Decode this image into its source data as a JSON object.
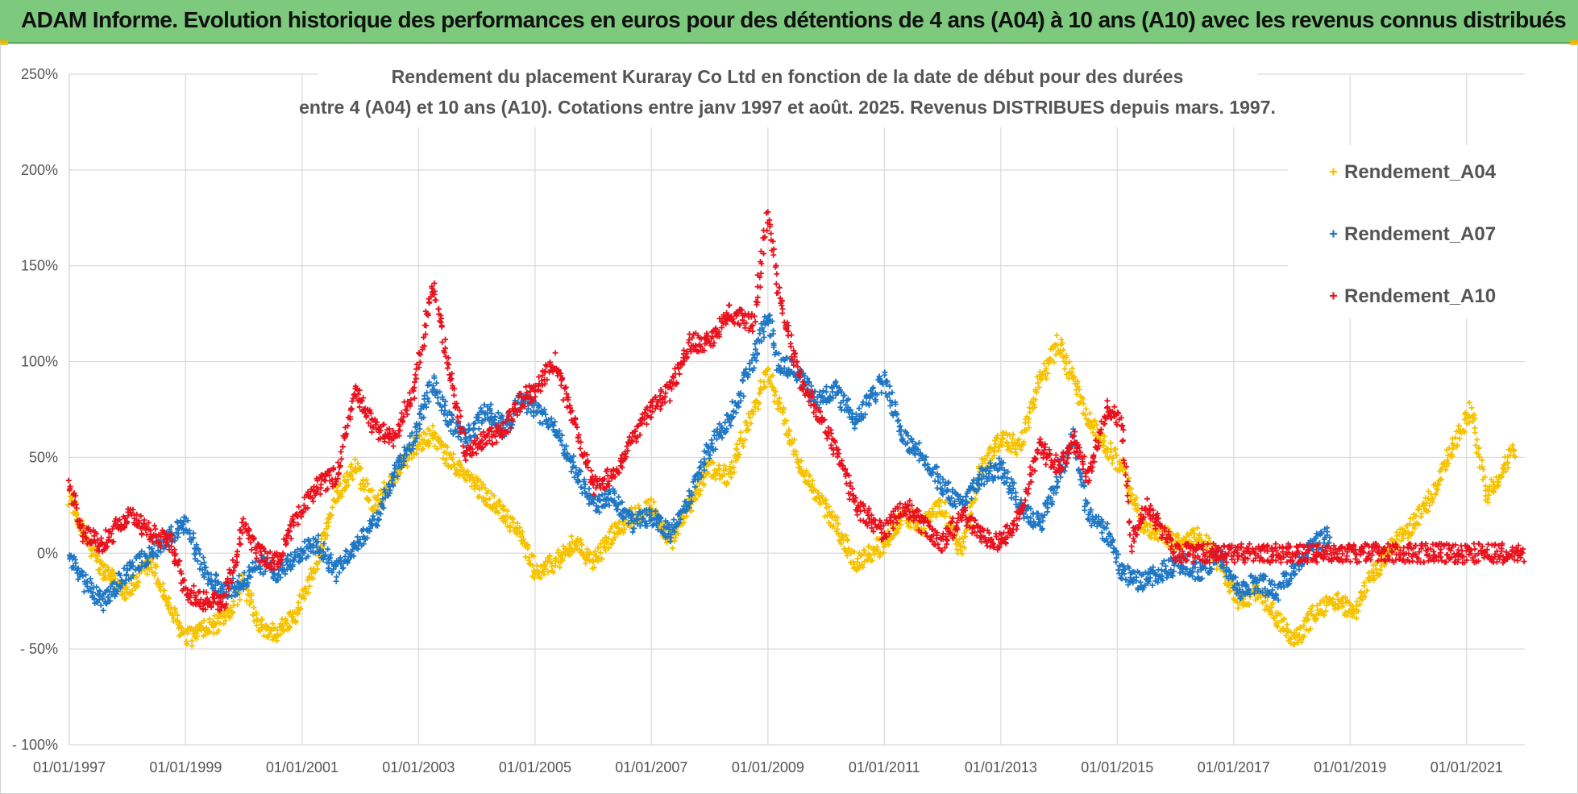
{
  "header": {
    "title": "ADAM Informe. Evolution historique des performances en euros pour des détentions de 4 ans (A04) à 10 ans (A10) avec les revenus connus distribués"
  },
  "colors": {
    "banner": "#7dc97d",
    "A04": "#f5c200",
    "A07": "#1f77c4",
    "A10": "#e8121e",
    "grid": "#d9d9d9",
    "text": "#555555"
  },
  "chart_data": {
    "type": "scatter",
    "title_line1": "Rendement du placement Kuraray Co Ltd en fonction de la date de début pour des durées",
    "title_line2": "entre 4 (A04) et 10 ans (A10). Cotations entre janv 1997 et août. 2025. Revenus DISTRIBUES depuis mars. 1997.",
    "x_range": [
      "1997-01-01",
      "2022-01-01"
    ],
    "ylim": [
      -100,
      250
    ],
    "y_ticks": [
      {
        "v": 250,
        "label": "250%"
      },
      {
        "v": 200,
        "label": "200%"
      },
      {
        "v": 150,
        "label": "150%"
      },
      {
        "v": 100,
        "label": "100%"
      },
      {
        "v": 50,
        "label": "50%"
      },
      {
        "v": 0,
        "label": "0%"
      },
      {
        "v": -50,
        "label": "- 50%"
      },
      {
        "v": -100,
        "label": "- 100%"
      }
    ],
    "x_ticks": [
      "01/01/1997",
      "01/01/1999",
      "01/01/2001",
      "01/01/2003",
      "01/01/2005",
      "01/01/2007",
      "01/01/2009",
      "01/01/2011",
      "01/01/2013",
      "01/01/2015",
      "01/01/2017",
      "01/01/2019",
      "01/01/2021"
    ],
    "grid": true,
    "legend_position": "top-right",
    "marker": "+",
    "series": [
      {
        "name": "Rendement_A04",
        "color": "#f5c200",
        "points": [
          [
            "1997-01-01",
            30
          ],
          [
            "1997-04-01",
            10
          ],
          [
            "1997-08-01",
            -10
          ],
          [
            "1998-01-01",
            -20
          ],
          [
            "1998-06-01",
            -5
          ],
          [
            "1998-10-01",
            -30
          ],
          [
            "1999-01-01",
            -45
          ],
          [
            "1999-05-01",
            -40
          ],
          [
            "1999-09-01",
            -35
          ],
          [
            "2000-01-01",
            -15
          ],
          [
            "2000-04-01",
            -38
          ],
          [
            "2000-08-01",
            -42
          ],
          [
            "2000-12-01",
            -30
          ],
          [
            "2001-04-01",
            -5
          ],
          [
            "2001-08-01",
            30
          ],
          [
            "2001-12-01",
            45
          ],
          [
            "2002-04-01",
            25
          ],
          [
            "2002-08-01",
            40
          ],
          [
            "2002-12-01",
            55
          ],
          [
            "2003-04-01",
            62
          ],
          [
            "2003-07-01",
            50
          ],
          [
            "2003-11-01",
            40
          ],
          [
            "2004-03-01",
            30
          ],
          [
            "2004-07-01",
            20
          ],
          [
            "2004-10-01",
            10
          ],
          [
            "2005-01-01",
            -10
          ],
          [
            "2005-05-01",
            -5
          ],
          [
            "2005-09-01",
            5
          ],
          [
            "2006-01-01",
            -5
          ],
          [
            "2006-05-01",
            10
          ],
          [
            "2006-09-01",
            20
          ],
          [
            "2007-01-01",
            25
          ],
          [
            "2007-05-01",
            5
          ],
          [
            "2007-09-01",
            25
          ],
          [
            "2008-01-01",
            45
          ],
          [
            "2008-05-01",
            40
          ],
          [
            "2008-10-01",
            75
          ],
          [
            "2009-01-01",
            95
          ],
          [
            "2009-03-01",
            80
          ],
          [
            "2009-07-01",
            50
          ],
          [
            "2009-11-01",
            30
          ],
          [
            "2010-03-01",
            15
          ],
          [
            "2010-07-01",
            -5
          ],
          [
            "2011-01-01",
            5
          ],
          [
            "2011-05-01",
            20
          ],
          [
            "2011-09-01",
            15
          ],
          [
            "2012-01-01",
            25
          ],
          [
            "2012-05-01",
            0
          ],
          [
            "2012-09-01",
            45
          ],
          [
            "2013-01-01",
            60
          ],
          [
            "2013-05-01",
            55
          ],
          [
            "2013-09-01",
            90
          ],
          [
            "2014-01-01",
            110
          ],
          [
            "2014-04-01",
            90
          ],
          [
            "2014-07-01",
            70
          ],
          [
            "2014-11-01",
            55
          ],
          [
            "2015-02-01",
            45
          ],
          [
            "2015-06-01",
            15
          ],
          [
            "2015-10-01",
            10
          ],
          [
            "2016-02-01",
            5
          ],
          [
            "2016-06-01",
            10
          ],
          [
            "2016-10-01",
            -5
          ],
          [
            "2017-02-01",
            -25
          ],
          [
            "2017-06-01",
            -20
          ],
          [
            "2017-10-01",
            -35
          ],
          [
            "2018-02-01",
            -45
          ],
          [
            "2018-06-01",
            -30
          ],
          [
            "2018-10-01",
            -25
          ],
          [
            "2019-02-01",
            -30
          ],
          [
            "2019-06-01",
            -10
          ],
          [
            "2019-10-01",
            5
          ],
          [
            "2020-02-01",
            15
          ],
          [
            "2020-06-01",
            30
          ],
          [
            "2020-10-01",
            55
          ],
          [
            "2021-02-01",
            75
          ],
          [
            "2021-05-01",
            30
          ],
          [
            "2021-08-01",
            40
          ],
          [
            "2021-11-01",
            55
          ]
        ]
      },
      {
        "name": "Rendement_A07",
        "color": "#1f77c4",
        "points": [
          [
            "1997-01-01",
            -2
          ],
          [
            "1997-04-01",
            -15
          ],
          [
            "1997-08-01",
            -25
          ],
          [
            "1998-01-01",
            -10
          ],
          [
            "1998-06-01",
            0
          ],
          [
            "1998-10-01",
            10
          ],
          [
            "1999-01-01",
            15
          ],
          [
            "1999-05-01",
            -10
          ],
          [
            "1999-09-01",
            -20
          ],
          [
            "2000-01-01",
            -15
          ],
          [
            "2000-04-01",
            -5
          ],
          [
            "2000-08-01",
            -10
          ],
          [
            "2000-12-01",
            0
          ],
          [
            "2001-04-01",
            5
          ],
          [
            "2001-08-01",
            -10
          ],
          [
            "2001-12-01",
            5
          ],
          [
            "2002-04-01",
            15
          ],
          [
            "2002-08-01",
            40
          ],
          [
            "2002-12-01",
            60
          ],
          [
            "2003-04-01",
            90
          ],
          [
            "2003-07-01",
            70
          ],
          [
            "2003-11-01",
            60
          ],
          [
            "2004-03-01",
            75
          ],
          [
            "2004-07-01",
            65
          ],
          [
            "2004-10-01",
            80
          ],
          [
            "2005-01-01",
            75
          ],
          [
            "2005-05-01",
            65
          ],
          [
            "2005-09-01",
            45
          ],
          [
            "2006-01-01",
            25
          ],
          [
            "2006-05-01",
            30
          ],
          [
            "2006-09-01",
            15
          ],
          [
            "2007-01-01",
            20
          ],
          [
            "2007-05-01",
            10
          ],
          [
            "2007-09-01",
            30
          ],
          [
            "2008-01-01",
            55
          ],
          [
            "2008-05-01",
            70
          ],
          [
            "2008-10-01",
            100
          ],
          [
            "2009-01-01",
            125
          ],
          [
            "2009-03-01",
            100
          ],
          [
            "2009-07-01",
            95
          ],
          [
            "2009-11-01",
            80
          ],
          [
            "2010-03-01",
            85
          ],
          [
            "2010-07-01",
            70
          ],
          [
            "2011-01-01",
            90
          ],
          [
            "2011-05-01",
            60
          ],
          [
            "2011-09-01",
            50
          ],
          [
            "2012-01-01",
            35
          ],
          [
            "2012-05-01",
            25
          ],
          [
            "2012-09-01",
            40
          ],
          [
            "2013-01-01",
            45
          ],
          [
            "2013-05-01",
            25
          ],
          [
            "2013-09-01",
            15
          ],
          [
            "2014-01-01",
            40
          ],
          [
            "2014-04-01",
            60
          ],
          [
            "2014-07-01",
            20
          ],
          [
            "2014-11-01",
            10
          ],
          [
            "2015-02-01",
            -10
          ],
          [
            "2015-06-01",
            -15
          ],
          [
            "2015-10-01",
            -10
          ],
          [
            "2016-02-01",
            -5
          ],
          [
            "2016-06-01",
            -10
          ],
          [
            "2016-10-01",
            0
          ],
          [
            "2017-02-01",
            -20
          ],
          [
            "2017-06-01",
            -15
          ],
          [
            "2017-10-01",
            -20
          ],
          [
            "2018-02-01",
            -5
          ],
          [
            "2018-06-01",
            5
          ],
          [
            "2018-09-01",
            10
          ]
        ]
      },
      {
        "name": "Rendement_A10",
        "color": "#e8121e",
        "points": [
          [
            "1997-01-01",
            35
          ],
          [
            "1997-04-01",
            10
          ],
          [
            "1997-08-01",
            5
          ],
          [
            "1998-01-01",
            20
          ],
          [
            "1998-06-01",
            10
          ],
          [
            "1998-10-01",
            5
          ],
          [
            "1999-01-01",
            -20
          ],
          [
            "1999-05-01",
            -25
          ],
          [
            "1999-09-01",
            -25
          ],
          [
            "2000-01-01",
            15
          ],
          [
            "2000-04-01",
            0
          ],
          [
            "2000-08-01",
            -5
          ],
          [
            "2000-12-01",
            20
          ],
          [
            "2001-04-01",
            35
          ],
          [
            "2001-08-01",
            40
          ],
          [
            "2001-12-01",
            85
          ],
          [
            "2002-04-01",
            65
          ],
          [
            "2002-08-01",
            60
          ],
          [
            "2002-12-01",
            85
          ],
          [
            "2003-04-01",
            140
          ],
          [
            "2003-07-01",
            100
          ],
          [
            "2003-11-01",
            50
          ],
          [
            "2004-03-01",
            60
          ],
          [
            "2004-07-01",
            65
          ],
          [
            "2004-10-01",
            80
          ],
          [
            "2005-01-01",
            85
          ],
          [
            "2005-05-01",
            100
          ],
          [
            "2005-09-01",
            70
          ],
          [
            "2006-01-01",
            35
          ],
          [
            "2006-05-01",
            40
          ],
          [
            "2006-09-01",
            60
          ],
          [
            "2007-01-01",
            75
          ],
          [
            "2007-05-01",
            85
          ],
          [
            "2007-09-01",
            110
          ],
          [
            "2008-01-01",
            110
          ],
          [
            "2008-05-01",
            125
          ],
          [
            "2008-10-01",
            120
          ],
          [
            "2009-01-01",
            180
          ],
          [
            "2009-03-01",
            140
          ],
          [
            "2009-07-01",
            95
          ],
          [
            "2009-11-01",
            75
          ],
          [
            "2010-03-01",
            55
          ],
          [
            "2010-07-01",
            25
          ],
          [
            "2011-01-01",
            10
          ],
          [
            "2011-05-01",
            25
          ],
          [
            "2011-09-01",
            15
          ],
          [
            "2012-01-01",
            5
          ],
          [
            "2012-05-01",
            20
          ],
          [
            "2012-09-01",
            10
          ],
          [
            "2013-01-01",
            5
          ],
          [
            "2013-05-01",
            20
          ],
          [
            "2013-09-01",
            55
          ],
          [
            "2014-01-01",
            45
          ],
          [
            "2014-04-01",
            60
          ],
          [
            "2014-07-01",
            40
          ],
          [
            "2014-11-01",
            75
          ],
          [
            "2015-02-01",
            70
          ],
          [
            "2015-04-01",
            5
          ],
          [
            "2015-07-01",
            25
          ],
          [
            "2016-01-01",
            0
          ],
          [
            "2017-01-01",
            0
          ],
          [
            "2018-01-01",
            0
          ],
          [
            "2019-01-01",
            0
          ],
          [
            "2020-01-01",
            0
          ],
          [
            "2021-01-01",
            0
          ],
          [
            "2022-01-01",
            0
          ]
        ]
      }
    ]
  }
}
